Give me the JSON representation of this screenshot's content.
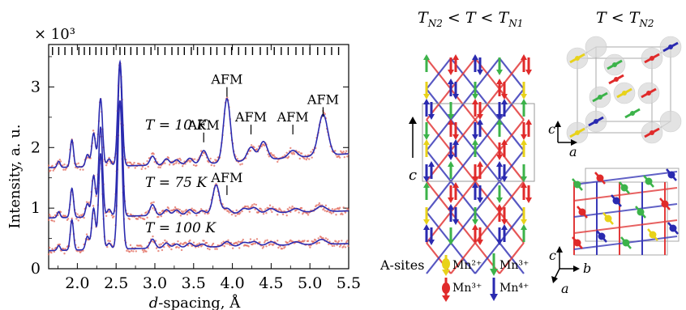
{
  "chart_data": {
    "type": "line",
    "xlabel": "d-spacing, Å",
    "ylabel": "Intensity, a. u.",
    "y_multiplier": "× 10³",
    "xlim": [
      1.63,
      5.5
    ],
    "ylim": [
      0,
      3.7
    ],
    "x_ticks": [
      "2.0",
      "2.5",
      "3.0",
      "3.5",
      "4.0",
      "4.5",
      "5.0",
      "5.5"
    ],
    "y_ticks": [
      "0",
      "1",
      "2",
      "3"
    ],
    "reflection_marks": [
      1.68,
      1.76,
      1.84,
      1.93,
      2.02,
      2.09,
      2.16,
      2.24,
      2.31,
      2.38,
      2.47,
      2.55,
      2.61,
      2.69,
      2.77,
      2.86,
      2.95,
      3.04,
      3.13,
      3.22,
      3.3,
      3.38,
      3.47,
      3.55,
      3.63,
      3.72,
      3.8,
      3.9,
      3.99,
      4.08,
      4.17,
      4.26,
      4.36,
      4.45,
      4.54,
      4.63,
      4.72,
      4.82,
      4.91,
      5.0,
      5.1,
      5.19,
      5.28,
      5.37
    ],
    "series": [
      {
        "label": "T = 100 K",
        "baseline": 0.3,
        "peaks": [
          [
            1.76,
            0.08
          ],
          [
            1.93,
            0.5
          ],
          [
            2.13,
            0.22
          ],
          [
            2.21,
            0.68
          ],
          [
            2.3,
            1.58
          ],
          [
            2.41,
            0.1
          ],
          [
            2.55,
            2.45
          ],
          [
            2.97,
            0.15
          ],
          [
            3.15,
            0.08
          ],
          [
            3.28,
            0.06
          ],
          [
            3.45,
            0.07
          ],
          [
            3.61,
            0.05
          ],
          [
            3.93,
            0.08
          ],
          [
            4.15,
            0.06
          ],
          [
            4.28,
            0.07
          ],
          [
            4.5,
            0.06
          ],
          [
            4.82,
            0.05
          ],
          [
            5.15,
            0.08
          ]
        ]
      },
      {
        "label": "T = 75 K",
        "baseline": 0.84,
        "peaks": [
          [
            1.76,
            0.1
          ],
          [
            1.93,
            0.48
          ],
          [
            2.13,
            0.22
          ],
          [
            2.21,
            0.68
          ],
          [
            2.3,
            1.48
          ],
          [
            2.41,
            0.12
          ],
          [
            2.55,
            2.52
          ],
          [
            2.97,
            0.18
          ],
          [
            3.15,
            0.09
          ],
          [
            3.28,
            0.08
          ],
          [
            3.45,
            0.08
          ],
          [
            3.61,
            0.06
          ],
          [
            3.79,
            0.48
          ],
          [
            3.93,
            0.09
          ],
          [
            4.15,
            0.08
          ],
          [
            4.28,
            0.09
          ],
          [
            4.5,
            0.07
          ],
          [
            4.82,
            0.06
          ],
          [
            5.15,
            0.09
          ]
        ]
      },
      {
        "label": "T = 10 K",
        "baseline": 1.67,
        "peaks": [
          [
            1.76,
            0.1
          ],
          [
            1.93,
            0.45
          ],
          [
            2.13,
            0.2
          ],
          [
            2.21,
            0.55
          ],
          [
            2.3,
            1.12
          ],
          [
            2.41,
            0.12
          ],
          [
            2.55,
            1.72
          ],
          [
            2.97,
            0.15
          ],
          [
            3.15,
            0.1
          ],
          [
            3.28,
            0.08
          ],
          [
            3.45,
            0.1
          ],
          [
            3.63,
            0.22
          ],
          [
            3.93,
            1.05
          ],
          [
            4.24,
            0.22
          ],
          [
            4.4,
            0.3
          ],
          [
            4.78,
            0.12
          ],
          [
            5.17,
            0.68
          ]
        ]
      }
    ],
    "annotations": [
      {
        "text": "AFM",
        "x": 3.93,
        "y": 3.05
      },
      {
        "text": "AFM",
        "x": 5.17,
        "y": 2.72
      },
      {
        "text": "AFM",
        "x": 3.63,
        "y": 2.3
      },
      {
        "text": "AFM",
        "x": 4.24,
        "y": 2.43
      },
      {
        "text": "AFM",
        "x": 4.78,
        "y": 2.43
      },
      {
        "text": "AFM",
        "x": 3.93,
        "y": 1.43
      }
    ],
    "series_label_text": [
      "T = 10 K",
      "T = 75 K",
      "T = 100 K"
    ],
    "colors": {
      "fit": "#2b2bb0",
      "data": "#e06a5c"
    }
  },
  "structure_panel": {
    "heading_left": "T_N2 < T < T_N1",
    "heading_right": "T < T_N2",
    "axis_c": "c",
    "axis_a": "a",
    "axis_b": "b",
    "legend_title": "A-sites",
    "legend": [
      {
        "label": "Mn²⁺",
        "color": "#e8d21a"
      },
      {
        "label": "Mn³⁺",
        "color": "#3cb34a"
      },
      {
        "label": "Mn³⁺",
        "color": "#e02a2a"
      },
      {
        "label": "Mn⁴⁺",
        "color": "#2a2ab0"
      }
    ]
  }
}
